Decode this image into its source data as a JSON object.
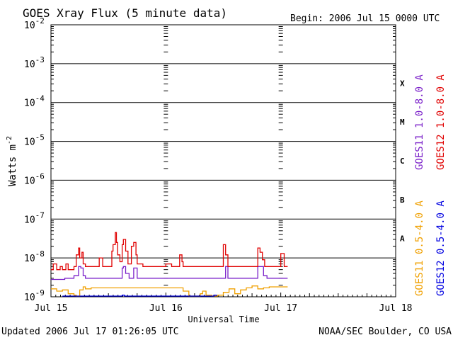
{
  "chart_data": {
    "type": "line",
    "title": "GOES Xray Flux (5 minute data)",
    "begin": "Begin:  2006 Jul 15 0000 UTC",
    "xlabel": "Universal Time",
    "ylabel_base": "Watts m",
    "ylabel_exp": "-2",
    "yscale": "log",
    "ylim": [
      1e-09,
      0.01
    ],
    "xlim_days": [
      0,
      3
    ],
    "xticks": [
      {
        "day": 0,
        "label": "Jul 15"
      },
      {
        "day": 1,
        "label": "Jul 16"
      },
      {
        "day": 2,
        "label": "Jul 17"
      },
      {
        "day": 3,
        "label": "Jul 18"
      }
    ],
    "yticks": [
      {
        "exp": -2,
        "label": "-2"
      },
      {
        "exp": -3,
        "label": "-3"
      },
      {
        "exp": -4,
        "label": "-4"
      },
      {
        "exp": -5,
        "label": "-5"
      },
      {
        "exp": -6,
        "label": "-6"
      },
      {
        "exp": -7,
        "label": "-7"
      },
      {
        "exp": -8,
        "label": "-8"
      },
      {
        "exp": -9,
        "label": "-9"
      }
    ],
    "flare_classes": [
      {
        "label": "X",
        "exp": -3.5
      },
      {
        "label": "M",
        "exp": -4.5
      },
      {
        "label": "C",
        "exp": -5.5
      },
      {
        "label": "B",
        "exp": -6.5
      },
      {
        "label": "A",
        "exp": -7.5
      }
    ],
    "series": [
      {
        "name": "GOES11 1.0-8.0 A",
        "color": "#7a1fc9",
        "x": [
          0,
          0.08,
          0.12,
          0.2,
          0.24,
          0.26,
          0.28,
          0.3,
          0.4,
          0.55,
          0.62,
          0.63,
          0.65,
          0.68,
          0.72,
          0.75,
          0.8,
          0.9,
          0.95,
          1.0,
          1.05,
          1.1,
          1.15,
          1.2,
          1.3,
          1.4,
          1.5,
          1.52,
          1.54,
          1.6,
          1.7,
          1.8,
          1.8,
          1.82,
          1.85,
          1.88,
          1.9,
          1.95,
          2.0,
          2.02,
          2.04,
          2.06
        ],
        "y": [
          2.8e-09,
          2.8e-09,
          3e-09,
          3.5e-09,
          6e-09,
          5.5e-09,
          3.5e-09,
          3e-09,
          3e-09,
          3e-09,
          5.5e-09,
          6e-09,
          4e-09,
          3e-09,
          5.5e-09,
          3e-09,
          3e-09,
          3e-09,
          3e-09,
          3e-09,
          3e-09,
          3e-09,
          3e-09,
          3e-09,
          3e-09,
          3e-09,
          3e-09,
          6e-09,
          3e-09,
          3e-09,
          3e-09,
          3e-09,
          6e-09,
          6e-09,
          3.5e-09,
          3e-09,
          3e-09,
          3e-09,
          3e-09,
          3e-09,
          3e-09,
          3e-09
        ]
      },
      {
        "name": "GOES12 1.0-8.0 A",
        "color": "#e00000",
        "x": [
          0,
          0.02,
          0.05,
          0.08,
          0.1,
          0.13,
          0.15,
          0.2,
          0.22,
          0.24,
          0.25,
          0.27,
          0.28,
          0.3,
          0.35,
          0.4,
          0.42,
          0.45,
          0.5,
          0.53,
          0.54,
          0.56,
          0.57,
          0.58,
          0.6,
          0.62,
          0.63,
          0.65,
          0.67,
          0.7,
          0.72,
          0.74,
          0.75,
          0.8,
          0.85,
          0.9,
          0.95,
          1.0,
          1.05,
          1.1,
          1.12,
          1.14,
          1.15,
          1.2,
          1.3,
          1.4,
          1.45,
          1.5,
          1.5,
          1.52,
          1.54,
          1.6,
          1.7,
          1.75,
          1.8,
          1.8,
          1.82,
          1.84,
          1.86,
          1.9,
          1.95,
          2.0,
          2.0,
          2.03,
          2.06
        ],
        "y": [
          5e-09,
          7e-09,
          5e-09,
          6e-09,
          5e-09,
          7e-09,
          5e-09,
          6e-09,
          1.2e-08,
          1.8e-08,
          1e-08,
          1.4e-08,
          7e-09,
          6e-09,
          6e-09,
          6e-09,
          1e-08,
          6e-09,
          6e-09,
          1.5e-08,
          2.2e-08,
          4.5e-08,
          2.5e-08,
          1.2e-08,
          8e-09,
          2.2e-08,
          3e-08,
          1.5e-08,
          7e-09,
          2e-08,
          2.5e-08,
          1.2e-08,
          7e-09,
          6e-09,
          6e-09,
          6e-09,
          6e-09,
          7e-09,
          6e-09,
          6e-09,
          1.2e-08,
          8e-09,
          6e-09,
          6e-09,
          6e-09,
          6e-09,
          6e-09,
          6e-09,
          2.2e-08,
          1.2e-08,
          6e-09,
          6e-09,
          6e-09,
          6e-09,
          6e-09,
          1.8e-08,
          1.4e-08,
          9e-09,
          6e-09,
          6e-09,
          6e-09,
          6e-09,
          1.3e-08,
          6e-09,
          6e-09
        ]
      },
      {
        "name": "GOES11 0.5-4.0 A",
        "color": "#f0a000",
        "x": [
          0,
          0.05,
          0.1,
          0.15,
          0.2,
          0.22,
          0.25,
          0.28,
          0.3,
          0.35,
          0.4,
          0.45,
          0.5,
          0.55,
          0.6,
          0.65,
          0.7,
          0.75,
          0.8,
          0.85,
          0.9,
          0.95,
          1.0,
          1.05,
          1.1,
          1.15,
          1.2,
          1.25,
          1.3,
          1.32,
          1.35,
          1.4,
          1.45,
          1.5,
          1.55,
          1.6,
          1.65,
          1.7,
          1.75,
          1.8,
          1.85,
          1.9,
          1.95,
          2.0,
          2.06
        ],
        "y": [
          1.6e-09,
          1.4e-09,
          1.5e-09,
          1.2e-09,
          1.1e-09,
          9e-10,
          1.5e-09,
          1.8e-09,
          1.6e-09,
          1.7e-09,
          1.7e-09,
          1.7e-09,
          1.7e-09,
          1.7e-09,
          1.7e-09,
          1.7e-09,
          1.7e-09,
          1.7e-09,
          1.7e-09,
          1.7e-09,
          1.7e-09,
          1.7e-09,
          1.7e-09,
          1.7e-09,
          1.7e-09,
          1.4e-09,
          9e-10,
          8e-10,
          1.2e-09,
          1.4e-09,
          1.1e-09,
          8e-10,
          1.1e-09,
          1.3e-09,
          1.6e-09,
          1.2e-09,
          1.5e-09,
          1.7e-09,
          1.9e-09,
          1.6e-09,
          1.7e-09,
          1.8e-09,
          1.8e-09,
          1.8e-09,
          1.8e-09
        ]
      },
      {
        "name": "GOES12 0.5-4.0 A",
        "color": "#0000e0",
        "x": [
          0.1,
          0.12,
          0.14,
          0.16,
          0.18,
          0.2,
          0.25,
          0.3,
          0.35,
          0.38,
          0.6,
          0.62,
          0.64,
          1.2,
          1.22,
          1.24,
          1.26,
          1.28,
          1.4,
          1.42,
          1.44
        ],
        "y": [
          8e-10,
          1e-09,
          9e-10,
          1e-09,
          9e-10,
          1e-09,
          1e-09,
          1e-09,
          1e-09,
          9e-10,
          9e-10,
          1.1e-09,
          9e-10,
          8e-10,
          1e-09,
          1e-09,
          9e-10,
          1e-09,
          9e-10,
          1.1e-09,
          9e-10
        ]
      }
    ],
    "legend_right": [
      {
        "label": "GOES11 1.0-8.0 A",
        "color": "#7a1fc9"
      },
      {
        "label": "GOES12 1.0-8.0 A",
        "color": "#e00000"
      },
      {
        "label": "GOES11 0.5-4.0 A",
        "color": "#f0a000"
      },
      {
        "label": "GOES12 0.5-4.0 A",
        "color": "#0000e0"
      }
    ]
  },
  "footer": {
    "updated": "Updated 2006 Jul 17 01:26:05 UTC",
    "source": "NOAA/SEC Boulder, CO USA"
  }
}
